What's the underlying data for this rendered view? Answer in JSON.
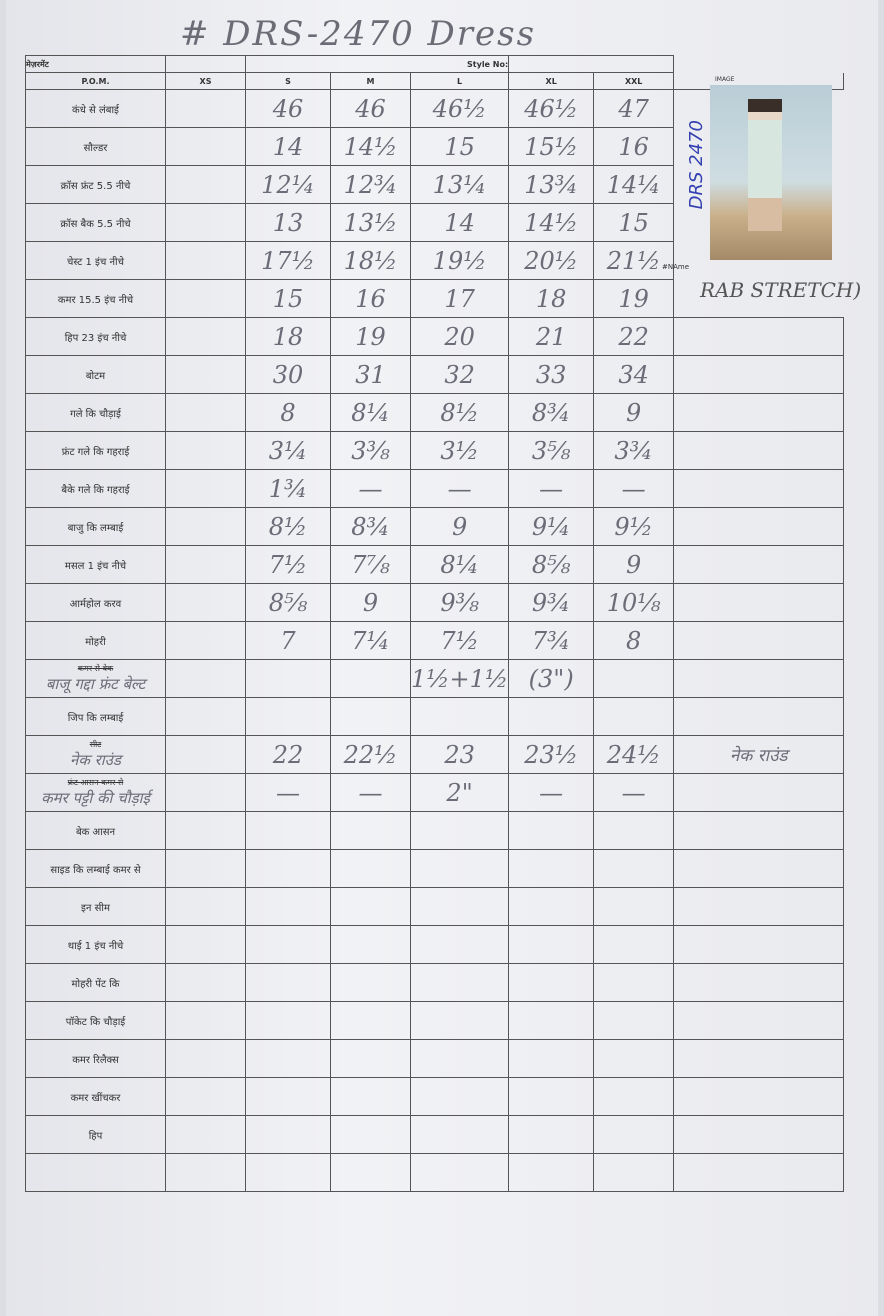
{
  "title": "# DRS-2470 Dress",
  "header": {
    "measurement_label": "मेज़रमेंट",
    "style_no_label": "Style No:",
    "pom_label": "P.O.M.",
    "sizes": [
      "XS",
      "S",
      "M",
      "L",
      "XL",
      "XXL"
    ],
    "image_label": "IMAGE",
    "name_label": "#NAme",
    "name_value": "RAB STRETCH)",
    "image_code": "DRS 2470"
  },
  "rows": [
    {
      "label": "कंधे से लंबाई",
      "values": [
        "",
        "46",
        "46",
        "46½",
        "46½",
        "47"
      ]
    },
    {
      "label": "सौल्डर",
      "values": [
        "",
        "14",
        "14½",
        "15",
        "15½",
        "16"
      ]
    },
    {
      "label": "क्रॉस फ्रंट 5.5 नीचे",
      "values": [
        "",
        "12¼",
        "12¾",
        "13¼",
        "13¾",
        "14¼"
      ]
    },
    {
      "label": "क्रॉस बैक 5.5 नीचे",
      "values": [
        "",
        "13",
        "13½",
        "14",
        "14½",
        "15"
      ]
    },
    {
      "label": "चेस्ट 1 इंच नीचे",
      "values": [
        "",
        "17½",
        "18½",
        "19½",
        "20½",
        "21½"
      ]
    },
    {
      "label": "कमर 15.5 इंच नीचे",
      "values": [
        "",
        "15",
        "16",
        "17",
        "18",
        "19"
      ]
    },
    {
      "label": "हिप 23 इंच नीचे",
      "values": [
        "",
        "18",
        "19",
        "20",
        "21",
        "22"
      ]
    },
    {
      "label": "बोटम",
      "values": [
        "",
        "30",
        "31",
        "32",
        "33",
        "34"
      ]
    },
    {
      "label": "गले कि चौड़ाई",
      "values": [
        "",
        "8",
        "8¼",
        "8½",
        "8¾",
        "9"
      ]
    },
    {
      "label": "फ्रंट गले कि गहराई",
      "values": [
        "",
        "3¼",
        "3⅜",
        "3½",
        "3⅝",
        "3¾"
      ]
    },
    {
      "label": "बैके गले कि गहराई",
      "values": [
        "",
        "1¾",
        "—",
        "—",
        "—",
        "—"
      ]
    },
    {
      "label": "बाजु कि लम्बाई",
      "values": [
        "",
        "8½",
        "8¾",
        "9",
        "9¼",
        "9½"
      ]
    },
    {
      "label": "मसल 1 इंच नीचे",
      "values": [
        "",
        "7½",
        "7⅞",
        "8¼",
        "8⅝",
        "9"
      ]
    },
    {
      "label": "आर्महोल करव",
      "values": [
        "",
        "8⅝",
        "9",
        "9⅜",
        "9¾",
        "10⅛"
      ]
    },
    {
      "label": "मोहरी",
      "values": [
        "",
        "7",
        "7¼",
        "7½",
        "7¾",
        "8"
      ]
    },
    {
      "label": "कमर से बेक",
      "struck": true,
      "handwritten": "बाजू गद्दा फ्रंट बेल्ट",
      "values": [
        "",
        "",
        "",
        "1½+1½",
        "(3\")",
        ""
      ]
    },
    {
      "label": "जिप कि लम्बाई",
      "values": [
        "",
        "",
        "",
        "",
        "",
        ""
      ]
    },
    {
      "label": "सीट",
      "struck": true,
      "handwritten": "नेक राउंड",
      "values": [
        "",
        "22",
        "22½",
        "23",
        "23½",
        "24½"
      ],
      "extra": "नेक राउंड"
    },
    {
      "label": "फ्रंट आसन कमर से",
      "struck": true,
      "handwritten": "कमर पट्टी की चौड़ाई",
      "values": [
        "",
        "—",
        "—",
        "2\"",
        "—",
        "—"
      ]
    },
    {
      "label": "बेक आसन",
      "values": [
        "",
        "",
        "",
        "",
        "",
        ""
      ]
    },
    {
      "label": "साइड कि लम्बाई कमर से",
      "values": [
        "",
        "",
        "",
        "",
        "",
        ""
      ]
    },
    {
      "label": "इन सीम",
      "values": [
        "",
        "",
        "",
        "",
        "",
        ""
      ]
    },
    {
      "label": "थाई 1 इंच नीचे",
      "values": [
        "",
        "",
        "",
        "",
        "",
        ""
      ]
    },
    {
      "label": "मोहरी पेंट कि",
      "values": [
        "",
        "",
        "",
        "",
        "",
        ""
      ]
    },
    {
      "label": "पॉकेट कि चौड़ाई",
      "values": [
        "",
        "",
        "",
        "",
        "",
        ""
      ]
    },
    {
      "label": "कमर रिलैक्स",
      "values": [
        "",
        "",
        "",
        "",
        "",
        ""
      ]
    },
    {
      "label": "कमर खींचकर",
      "values": [
        "",
        "",
        "",
        "",
        "",
        ""
      ]
    },
    {
      "label": "हिप",
      "values": [
        "",
        "",
        "",
        "",
        "",
        ""
      ]
    },
    {
      "label": "",
      "values": [
        "",
        "",
        "",
        "",
        "",
        ""
      ]
    }
  ]
}
